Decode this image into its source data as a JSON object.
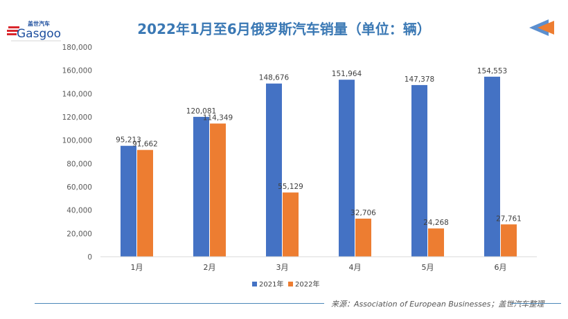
{
  "header": {
    "title": "2022年1月至6月俄罗斯汽车销量（单位：辆）",
    "logo_text": "盖世汽车 Gasgoo"
  },
  "footer": {
    "source": "来源：Association of European Businesses；盖世汽车整理"
  },
  "colors": {
    "series_2021": "#4472c4",
    "series_2022": "#ed7d31",
    "title": "#3a78b4"
  },
  "chart_data": {
    "type": "bar",
    "categories": [
      "1月",
      "2月",
      "3月",
      "4月",
      "5月",
      "6月"
    ],
    "series": [
      {
        "name": "2021年",
        "values": [
          95213,
          120081,
          148676,
          151964,
          147378,
          154553
        ],
        "labels": [
          "95,213",
          "120,081",
          "148,676",
          "151,964",
          "147,378",
          "154,553"
        ]
      },
      {
        "name": "2022年",
        "values": [
          91662,
          114349,
          55129,
          32706,
          24268,
          27761
        ],
        "labels": [
          "91,662",
          "114,349",
          "55,129",
          "32,706",
          "24,268",
          "27,761"
        ]
      }
    ],
    "yticks": [
      "0",
      "20,000",
      "40,000",
      "60,000",
      "80,000",
      "100,000",
      "120,000",
      "140,000",
      "160,000",
      "180,000"
    ],
    "ylim": [
      0,
      180000
    ],
    "grid": false,
    "legend": "bottom"
  }
}
